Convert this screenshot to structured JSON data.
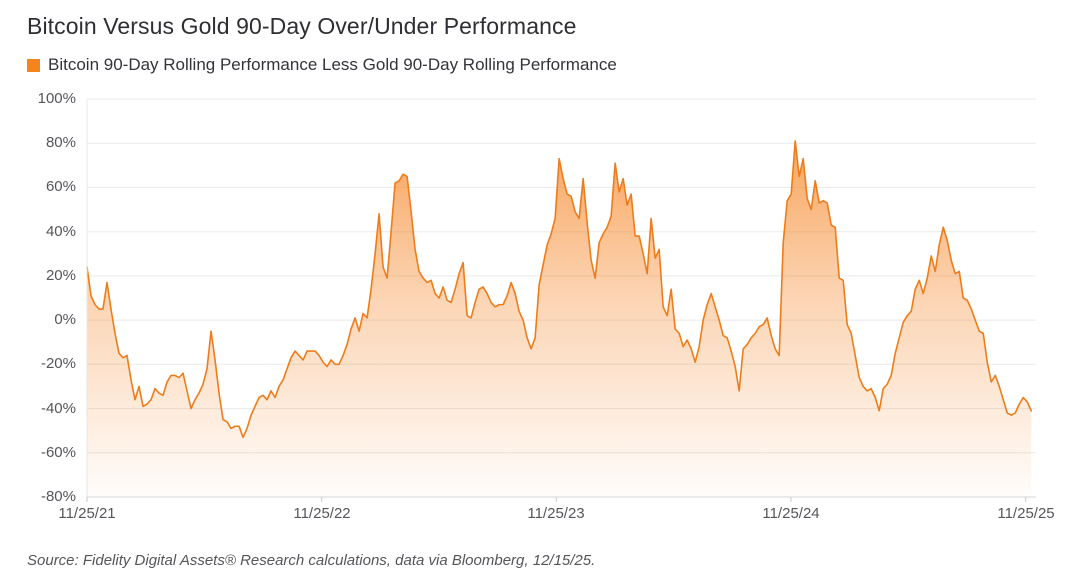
{
  "header": {
    "title": "Bitcoin Versus Gold 90-Day Over/Under Performance",
    "legend": {
      "swatch_color": "#F5841C",
      "label": "Bitcoin 90-Day Rolling Performance Less Gold 90-Day Rolling Performance"
    }
  },
  "footer": {
    "source": "Source: Fidelity Digital Assets® Research calculations, data via Bloomberg, 12/15/25."
  },
  "colors": {
    "line": "#EF7C1A",
    "fill_base": "#F58220",
    "gridline": "#EAEAEA",
    "axis_line": "#D7D7D7",
    "tick_mark": "#C9C9C9",
    "tick_text": "#55565A",
    "title_text": "#2E2E33"
  },
  "chart_data": {
    "type": "area",
    "title": "Bitcoin Versus Gold 90-Day Over/Under Performance",
    "legend_position": "top-left",
    "grid": true,
    "y_axis": {
      "unit": "%",
      "range": [
        -80,
        100
      ],
      "ticks": [
        {
          "label": "100%",
          "value": 100
        },
        {
          "label": "80%",
          "value": 80
        },
        {
          "label": "60%",
          "value": 60
        },
        {
          "label": "40%",
          "value": 40
        },
        {
          "label": "20%",
          "value": 20
        },
        {
          "label": "0%",
          "value": 0
        },
        {
          "label": "-20%",
          "value": -20
        },
        {
          "label": "-40%",
          "value": -40
        },
        {
          "label": "-60%",
          "value": -60
        },
        {
          "label": "-80%",
          "value": -80
        }
      ]
    },
    "x_axis": {
      "unit": "years_since_first_tick",
      "ticks": [
        {
          "label": "11/25/21",
          "value": 0
        },
        {
          "label": "11/25/22",
          "value": 1
        },
        {
          "label": "11/25/23",
          "value": 2
        },
        {
          "label": "11/25/24",
          "value": 3
        },
        {
          "label": "11/25/25",
          "value": 4
        }
      ]
    },
    "series": [
      {
        "name": "Bitcoin 90-Day Rolling Performance Less Gold 90-Day Rolling Performance",
        "x_start": 0,
        "x_step": 0.01705,
        "values_pct": [
          24,
          11,
          7,
          5,
          5,
          17,
          5,
          -6,
          -15,
          -17,
          -16,
          -27,
          -36,
          -30,
          -39,
          -38,
          -36,
          -31,
          -33,
          -34,
          -28,
          -25,
          -25,
          -26,
          -24,
          -32,
          -40,
          -36,
          -33,
          -29,
          -22,
          -5,
          -18,
          -33,
          -45,
          -46,
          -49,
          -48,
          -48,
          -53,
          -49,
          -43,
          -39,
          -35,
          -34,
          -36,
          -32,
          -35,
          -30,
          -27,
          -22,
          -17,
          -14,
          -16,
          -18,
          -14,
          -14,
          -14,
          -16,
          -19,
          -21,
          -18,
          -20,
          -20,
          -16,
          -11,
          -4,
          1,
          -5,
          3,
          1,
          14,
          30,
          48,
          24,
          19,
          40,
          62,
          63,
          66,
          65,
          49,
          32,
          22,
          19,
          17,
          18,
          12,
          10,
          15,
          9,
          8,
          14,
          21,
          26,
          2,
          1,
          8,
          14,
          15,
          12,
          8,
          6,
          7,
          7,
          11,
          17,
          12,
          4,
          0,
          -8,
          -13,
          -8,
          16,
          25,
          34,
          39,
          46,
          73,
          64,
          57,
          56,
          49,
          46,
          64,
          44,
          27,
          19,
          35,
          39,
          42,
          47,
          71,
          58,
          64,
          52,
          57,
          38,
          38,
          30,
          21,
          46,
          28,
          32,
          6,
          2,
          14,
          -4,
          -6,
          -12,
          -9,
          -13,
          -19,
          -12,
          0,
          7,
          12,
          6,
          0,
          -7,
          -8,
          -14,
          -21,
          -32,
          -13,
          -11,
          -8,
          -6,
          -3,
          -2,
          1,
          -7,
          -13,
          -16,
          35,
          54,
          57,
          81,
          65,
          73,
          55,
          50,
          63,
          53,
          54,
          53,
          43,
          42,
          19,
          18,
          -2,
          -6,
          -16,
          -26,
          -30,
          -32,
          -31,
          -35,
          -41,
          -31,
          -29,
          -25,
          -15,
          -8,
          -1,
          2,
          4,
          14,
          18,
          12,
          19,
          29,
          22,
          34,
          42,
          36,
          27,
          21,
          22,
          10,
          9,
          5,
          0,
          -5,
          -6,
          -19,
          -28,
          -25,
          -30,
          -36,
          -42,
          -43,
          -42,
          -38,
          -35,
          -37,
          -41
        ]
      }
    ]
  }
}
